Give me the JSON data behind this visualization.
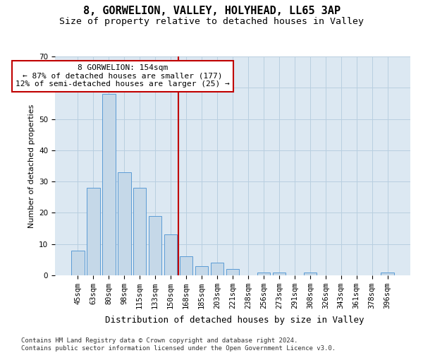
{
  "title_line1": "8, GORWELION, VALLEY, HOLYHEAD, LL65 3AP",
  "title_line2": "Size of property relative to detached houses in Valley",
  "xlabel": "Distribution of detached houses by size in Valley",
  "ylabel": "Number of detached properties",
  "bar_labels": [
    "45sqm",
    "63sqm",
    "80sqm",
    "98sqm",
    "115sqm",
    "133sqm",
    "150sqm",
    "168sqm",
    "185sqm",
    "203sqm",
    "221sqm",
    "238sqm",
    "256sqm",
    "273sqm",
    "291sqm",
    "308sqm",
    "326sqm",
    "343sqm",
    "361sqm",
    "378sqm",
    "396sqm"
  ],
  "bar_values": [
    8,
    28,
    58,
    33,
    28,
    19,
    13,
    6,
    3,
    4,
    2,
    0,
    1,
    1,
    0,
    1,
    0,
    0,
    0,
    0,
    1
  ],
  "bar_color": "#c5d8e8",
  "bar_edge_color": "#5b9bd5",
  "vline_x": 6.5,
  "vline_color": "#c00000",
  "annotation_text": "8 GORWELION: 154sqm\n← 87% of detached houses are smaller (177)\n12% of semi-detached houses are larger (25) →",
  "annotation_box_facecolor": "white",
  "annotation_box_edgecolor": "#c00000",
  "ylim_max": 70,
  "yticks": [
    0,
    10,
    20,
    30,
    40,
    50,
    60,
    70
  ],
  "grid_color": "#b8cfe0",
  "bg_color": "#dce8f2",
  "footnote": "Contains HM Land Registry data © Crown copyright and database right 2024.\nContains public sector information licensed under the Open Government Licence v3.0.",
  "title_fontsize": 11,
  "subtitle_fontsize": 9.5,
  "tick_fontsize": 7.5,
  "ylabel_fontsize": 8,
  "xlabel_fontsize": 9,
  "annotation_fontsize": 8,
  "footnote_fontsize": 6.5
}
